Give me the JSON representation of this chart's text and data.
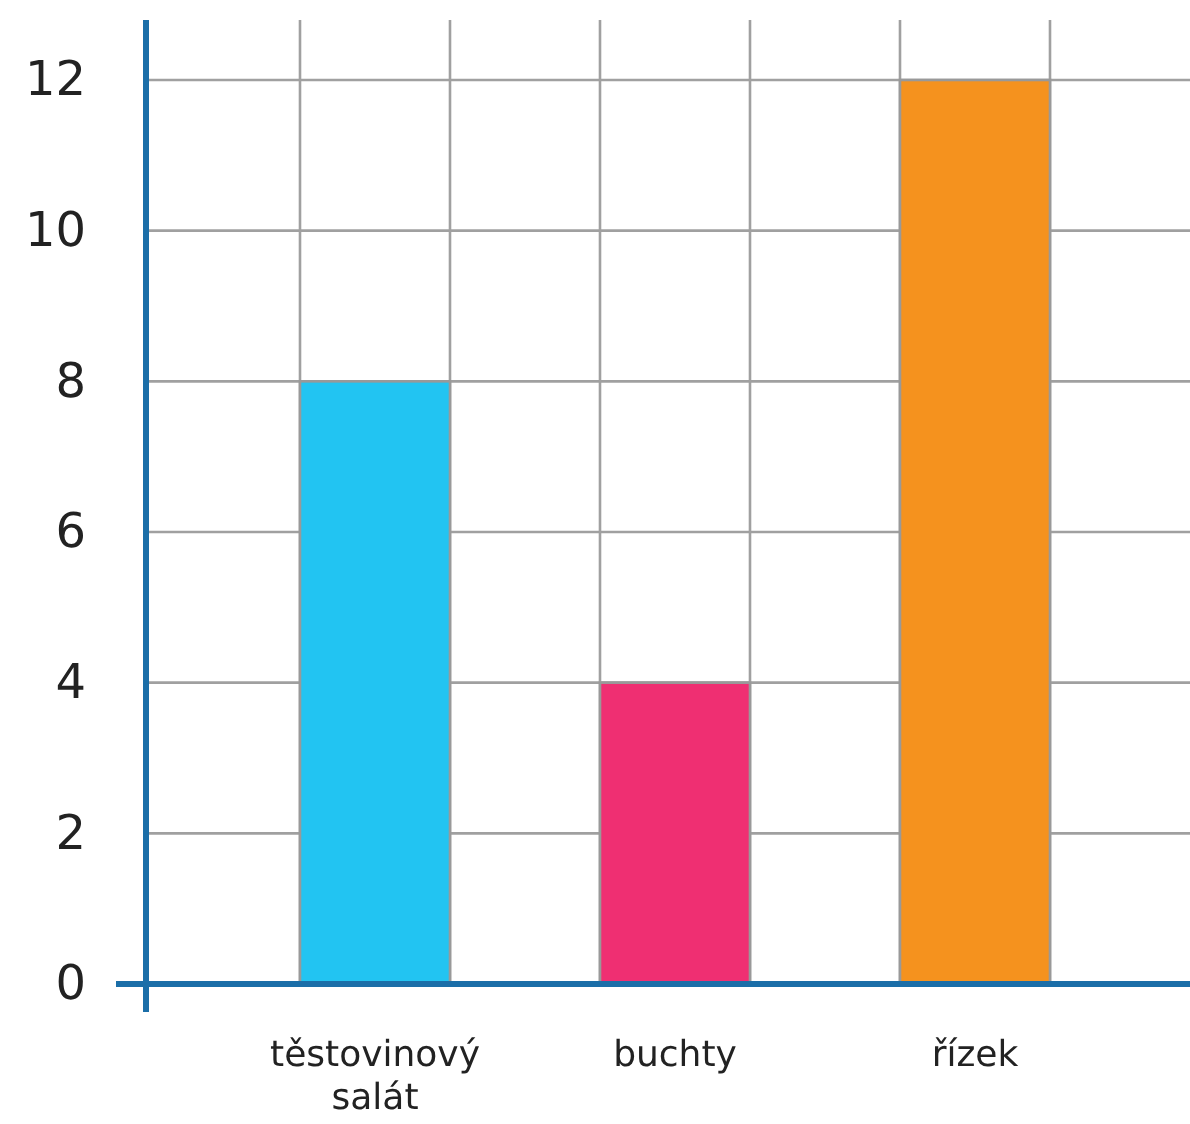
{
  "chart_data": {
    "type": "bar",
    "categories": [
      "těstovinový salát",
      "buchty",
      "řízek"
    ],
    "values": [
      8,
      4,
      12
    ],
    "colors": [
      "#22c4f2",
      "#ef2f72",
      "#f5921e"
    ],
    "ylim": [
      0,
      12
    ],
    "yticks": [
      0,
      2,
      4,
      6,
      8,
      10,
      12
    ],
    "grid": true
  }
}
